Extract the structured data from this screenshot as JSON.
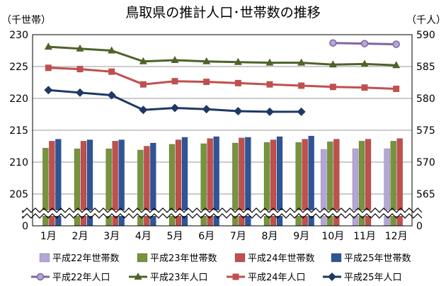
{
  "chart_data": {
    "type": "bar+line",
    "title": "鳥取県の推計人口･世帯数の推移",
    "left_axis": {
      "label": "（千世帯）",
      "ticks": [
        "230",
        "225",
        "220",
        "215",
        "210",
        "205",
        "0"
      ],
      "ylim": [
        200,
        230
      ],
      "broken": true
    },
    "right_axis": {
      "label": "（千人）",
      "ticks": [
        "590",
        "585",
        "580",
        "575",
        "570",
        "565",
        "0"
      ],
      "ylim": [
        560,
        590
      ],
      "broken": true
    },
    "categories": [
      "1月",
      "2月",
      "3月",
      "4月",
      "5月",
      "6月",
      "7月",
      "8月",
      "9月",
      "10月",
      "11月",
      "12月"
    ],
    "bar_series": [
      {
        "name": "平成22年世帯数",
        "color": "#b4a7d6",
        "values": [
          null,
          null,
          null,
          null,
          null,
          null,
          null,
          null,
          null,
          212.0,
          212.1,
          212.1
        ]
      },
      {
        "name": "平成23年世帯数",
        "color": "#77933c",
        "values": [
          212.2,
          212.1,
          212.1,
          211.9,
          212.8,
          212.9,
          213.0,
          213.1,
          213.1,
          213.2,
          213.3,
          213.3
        ]
      },
      {
        "name": "平成24年世帯数",
        "color": "#c0504d",
        "values": [
          213.3,
          213.3,
          213.3,
          212.5,
          213.5,
          213.7,
          213.8,
          213.5,
          213.6,
          213.6,
          213.6,
          213.7
        ]
      },
      {
        "name": "平成25年世帯数",
        "color": "#2f5597",
        "values": [
          213.6,
          213.5,
          213.5,
          213.0,
          213.9,
          214.0,
          213.9,
          214.0,
          214.1,
          null,
          null,
          null
        ]
      }
    ],
    "line_series": [
      {
        "name": "平成22年人口",
        "color": "#8064a2",
        "marker": "circle",
        "values": [
          null,
          null,
          null,
          null,
          null,
          null,
          null,
          null,
          null,
          588.7,
          588.6,
          588.5
        ]
      },
      {
        "name": "平成23年人口",
        "color": "#4f6228",
        "marker": "triangle",
        "values": [
          588.1,
          587.8,
          587.5,
          585.8,
          586.0,
          585.8,
          585.7,
          585.6,
          585.6,
          585.3,
          585.4,
          585.2
        ]
      },
      {
        "name": "平成24年人口",
        "color": "#c0504d",
        "marker": "square",
        "values": [
          584.8,
          584.6,
          584.2,
          582.2,
          582.7,
          582.6,
          582.4,
          582.2,
          582.0,
          581.8,
          581.7,
          581.5
        ]
      },
      {
        "name": "平成25年人口",
        "color": "#1f3864",
        "marker": "diamond",
        "values": [
          581.3,
          580.9,
          580.5,
          578.2,
          578.5,
          578.3,
          578.0,
          577.9,
          577.9,
          null,
          null,
          null
        ]
      }
    ],
    "grid": true,
    "legend_position": "bottom"
  }
}
